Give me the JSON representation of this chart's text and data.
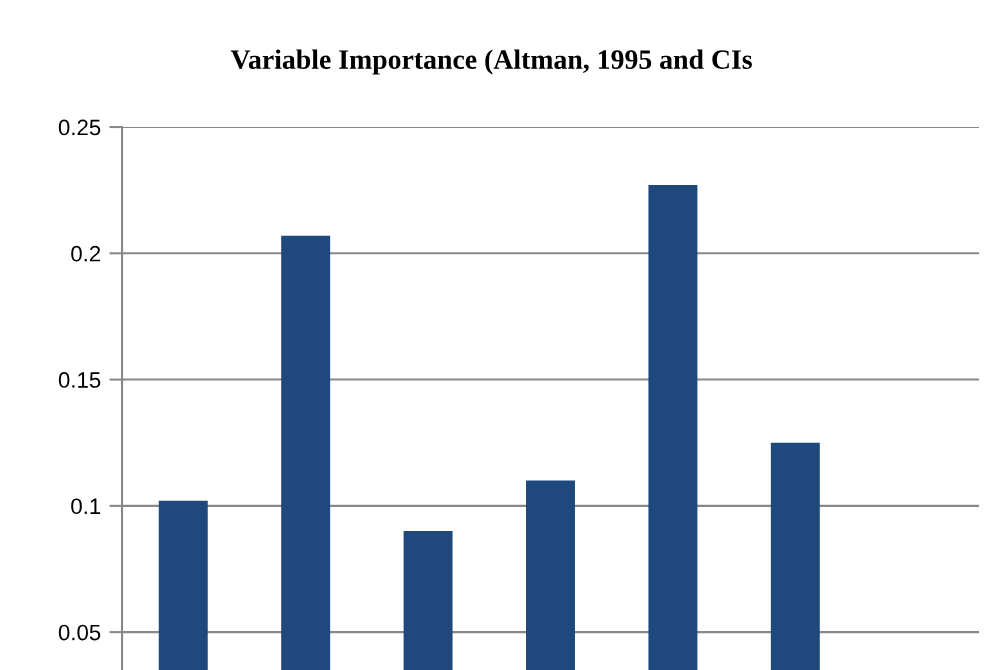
{
  "chart_data": {
    "type": "bar",
    "title": "Variable Importance (Altman, 1995 and CIs",
    "categories": [
      null,
      null,
      null,
      null,
      null,
      null,
      null
    ],
    "series": [
      {
        "color": "#1f497d",
        "values": [
          0.102,
          0.207,
          0.09,
          0.11,
          0.227,
          0.125,
          null
        ]
      }
    ],
    "ylim": [
      0.035,
      0.25
    ],
    "yticks": [
      0.05,
      0.1,
      0.15,
      0.2,
      0.25
    ],
    "grid": "y",
    "legend": false
  }
}
